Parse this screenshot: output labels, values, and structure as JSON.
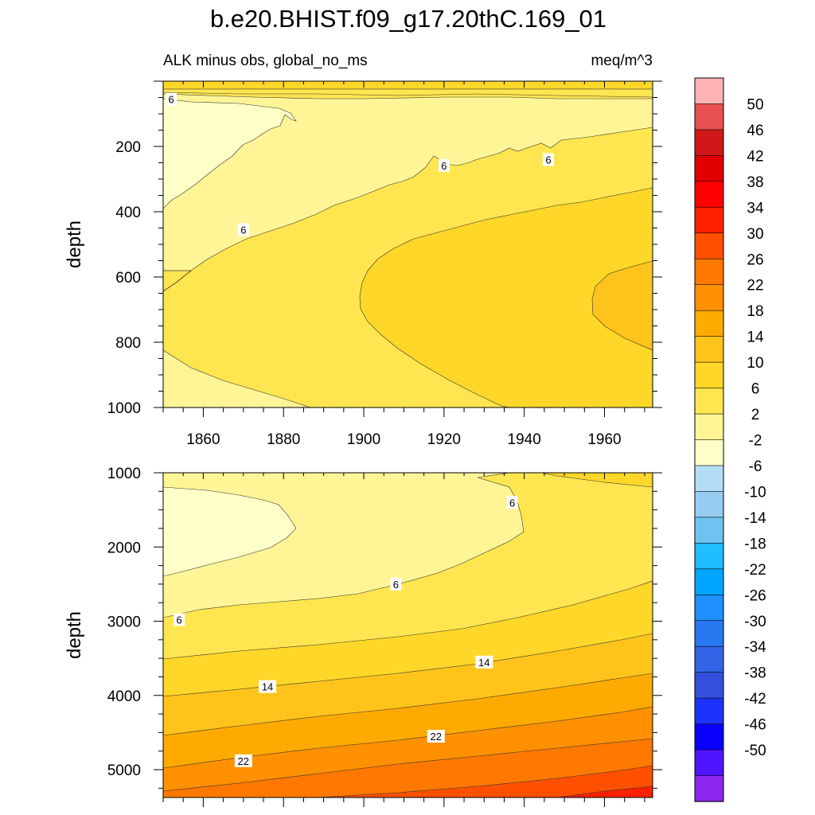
{
  "title": "b.e20.BHIST.f09_g17.20thC.169_01",
  "subtitle_left": "ALK minus obs, global_no_ms",
  "subtitle_right": "meq/m^3",
  "chart_data": [
    {
      "type": "contour",
      "panel": "upper",
      "xlabel": "",
      "ylabel": "depth",
      "xlim": [
        1850,
        1972
      ],
      "ylim": [
        1000,
        0
      ],
      "x_ticks": [
        1860,
        1880,
        1900,
        1920,
        1940,
        1960
      ],
      "y_ticks": [
        200,
        400,
        600,
        800,
        1000
      ],
      "contour_labels": [
        {
          "text": "6",
          "x": 1852,
          "y": 55
        },
        {
          "text": "6",
          "x": 1870,
          "y": 455
        },
        {
          "text": "6",
          "x": 1920,
          "y": 258
        },
        {
          "text": "6",
          "x": 1946,
          "y": 240
        }
      ]
    },
    {
      "type": "contour",
      "panel": "lower",
      "xlabel": "",
      "ylabel": "depth",
      "xlim": [
        1850,
        1972
      ],
      "ylim": [
        5375,
        1000
      ],
      "y_ticks": [
        1000,
        2000,
        3000,
        4000,
        5000
      ],
      "contour_labels": [
        {
          "text": "6",
          "x": 1937,
          "y": 1400
        },
        {
          "text": "6",
          "x": 1908,
          "y": 2500
        },
        {
          "text": "6",
          "x": 1854,
          "y": 2980
        },
        {
          "text": "14",
          "x": 1876,
          "y": 3880
        },
        {
          "text": "14",
          "x": 1930,
          "y": 3550
        },
        {
          "text": "22",
          "x": 1870,
          "y": 4880
        },
        {
          "text": "22",
          "x": 1918,
          "y": 4550
        }
      ]
    }
  ],
  "colorbar": {
    "labels": [
      "50",
      "46",
      "42",
      "38",
      "34",
      "30",
      "26",
      "22",
      "18",
      "14",
      "10",
      "6",
      "2",
      "-2",
      "-6",
      "-10",
      "-14",
      "-18",
      "-22",
      "-26",
      "-30",
      "-34",
      "-38",
      "-42",
      "-46",
      "-50"
    ],
    "colors": [
      "#FFB3B3",
      "#E85050",
      "#D01818",
      "#E00000",
      "#FF0000",
      "#FF2000",
      "#FF5000",
      "#FF7800",
      "#FF9000",
      "#FFAA00",
      "#FFC41C",
      "#FFD728",
      "#FFE650",
      "#FFF596",
      "#FFFFC8",
      "#B4DCF5",
      "#96CDF0",
      "#6EC3F0",
      "#1EBEFF",
      "#00A5FF",
      "#1E90FF",
      "#2878F0",
      "#3264E6",
      "#3250DC",
      "#1E32FF",
      "#0A00FF",
      "#5014FF",
      "#8C28F0"
    ]
  },
  "fill_colors": {
    "lightest": "#FFFFC8",
    "band_2_6": "#FFF596",
    "band_6_10": "#FFE650",
    "band_10_14": "#FFD728",
    "band_14_18": "#FFC41C",
    "band_18_22": "#FFAA00",
    "band_22_26": "#FF9000",
    "band_26_30": "#FF7800",
    "band_30_34": "#FF5000",
    "band_34_38": "#FF2000"
  }
}
